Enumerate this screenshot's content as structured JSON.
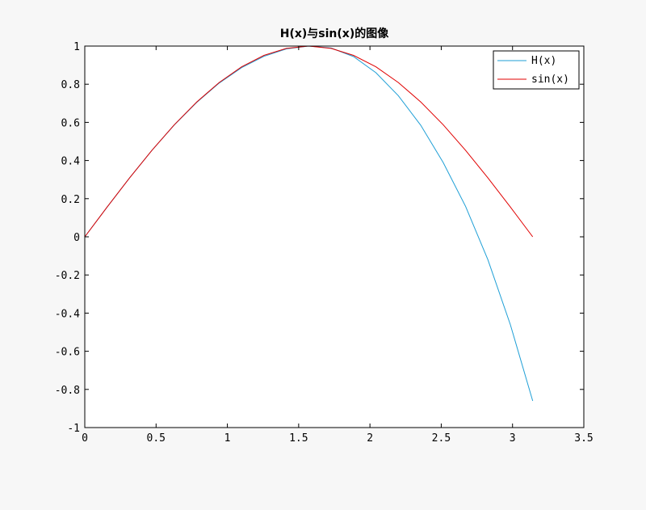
{
  "chart_data": {
    "type": "line",
    "title": "H(x)与sin(x)的图像",
    "xlabel": "",
    "ylabel": "",
    "xlim": [
      0,
      3.5
    ],
    "ylim": [
      -1,
      1
    ],
    "xticks": [
      0,
      0.5,
      1,
      1.5,
      2,
      2.5,
      3,
      3.5
    ],
    "xtick_labels": [
      "0",
      "0.5",
      "1",
      "1.5",
      "2",
      "2.5",
      "3",
      "3.5"
    ],
    "yticks": [
      1,
      0.8,
      0.6,
      0.4,
      0.2,
      0,
      -0.2,
      -0.4,
      -0.6,
      -0.8,
      -1
    ],
    "ytick_labels": [
      "1",
      "0.8",
      "0.6",
      "0.4",
      "0.2",
      "0",
      "-0.2",
      "-0.4",
      "-0.6",
      "-0.8",
      "-1"
    ],
    "grid": false,
    "legend_position": "top-right",
    "x": [
      0,
      0.1571,
      0.3142,
      0.4712,
      0.6283,
      0.7854,
      0.9425,
      1.0996,
      1.2566,
      1.4137,
      1.5708,
      1.7279,
      1.885,
      2.042,
      2.1991,
      2.3562,
      2.5133,
      2.6704,
      2.8274,
      2.9845,
      3.1416
    ],
    "series": [
      {
        "name": "H(x)",
        "color": "#1f9fd6",
        "values": [
          0,
          0.156,
          0.309,
          0.454,
          0.587,
          0.705,
          0.806,
          0.887,
          0.946,
          0.985,
          1.0,
          0.99,
          0.945,
          0.86,
          0.74,
          0.585,
          0.39,
          0.16,
          -0.12,
          -0.46,
          -0.86
        ]
      },
      {
        "name": "sin(x)",
        "color": "#e00000",
        "values": [
          0,
          0.1564,
          0.309,
          0.454,
          0.5878,
          0.7071,
          0.809,
          0.891,
          0.9511,
          0.9877,
          1.0,
          0.9877,
          0.9511,
          0.891,
          0.809,
          0.7071,
          0.5878,
          0.454,
          0.309,
          0.1564,
          0.0
        ]
      }
    ]
  }
}
